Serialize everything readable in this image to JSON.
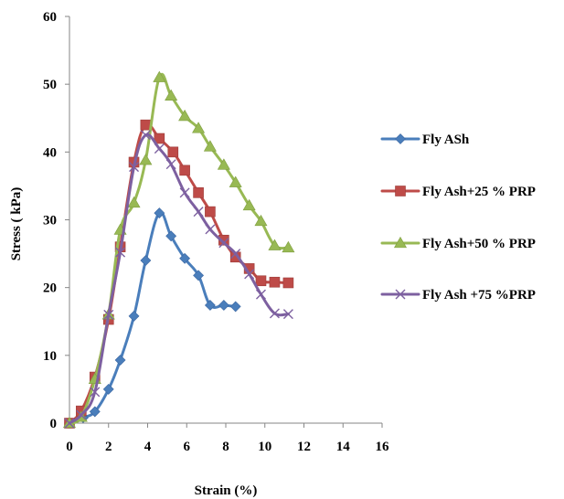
{
  "chart_data": {
    "type": "line",
    "title": "",
    "xlabel": "Strain  (%)",
    "ylabel": "Stress ( kPa)",
    "xlim": [
      0,
      16
    ],
    "ylim": [
      0,
      60
    ],
    "x_ticks": [
      0,
      2,
      4,
      6,
      8,
      10,
      12,
      14,
      16
    ],
    "y_ticks": [
      0,
      10,
      20,
      30,
      40,
      50,
      60
    ],
    "grid": false,
    "legend": "right",
    "series": [
      {
        "name": "Fly ASh",
        "color": "#4A7EBB",
        "marker": "diamond",
        "points": [
          [
            0,
            0
          ],
          [
            0.7,
            0.8
          ],
          [
            1.3,
            1.7
          ],
          [
            2,
            5
          ],
          [
            2.6,
            9.3
          ],
          [
            3.3,
            15.8
          ],
          [
            3.9,
            24
          ],
          [
            4.6,
            31
          ],
          [
            5.2,
            27.6
          ],
          [
            5.9,
            24.3
          ],
          [
            6.6,
            21.8
          ],
          [
            7.2,
            17.4
          ],
          [
            7.9,
            17.4
          ],
          [
            8.5,
            17.2
          ]
        ]
      },
      {
        "name": "Fly Ash+25 % PRP",
        "color": "#BE4B48",
        "marker": "square",
        "points": [
          [
            0,
            0
          ],
          [
            0.6,
            1.8
          ],
          [
            1.3,
            6.8
          ],
          [
            2,
            15.3
          ],
          [
            2.6,
            26
          ],
          [
            3.3,
            38.5
          ],
          [
            3.9,
            44
          ],
          [
            4.6,
            42
          ],
          [
            5.3,
            40
          ],
          [
            5.9,
            37.3
          ],
          [
            6.6,
            34
          ],
          [
            7.2,
            31.2
          ],
          [
            7.9,
            27
          ],
          [
            8.5,
            24.5
          ],
          [
            9.2,
            22.8
          ],
          [
            9.8,
            21
          ],
          [
            10.5,
            20.8
          ],
          [
            11.2,
            20.7
          ]
        ]
      },
      {
        "name": "Fly Ash+50 % PRP",
        "color": "#98B954",
        "marker": "triangle",
        "points": [
          [
            0,
            0
          ],
          [
            0.6,
            0.9
          ],
          [
            1.3,
            6.5
          ],
          [
            2,
            16
          ],
          [
            2.6,
            28.5
          ],
          [
            3.3,
            32.5
          ],
          [
            3.9,
            38.8
          ],
          [
            4.6,
            51
          ],
          [
            5.2,
            48.3
          ],
          [
            5.9,
            45.3
          ],
          [
            6.6,
            43.5
          ],
          [
            7.2,
            40.8
          ],
          [
            7.9,
            38.1
          ],
          [
            8.5,
            35.5
          ],
          [
            9.2,
            32.1
          ],
          [
            9.8,
            29.8
          ],
          [
            10.5,
            26.2
          ],
          [
            11.2,
            25.9
          ]
        ]
      },
      {
        "name": "Fly Ash +75 %PRP",
        "color": "#7D60A0",
        "marker": "x",
        "points": [
          [
            0,
            0
          ],
          [
            0.6,
            1.2
          ],
          [
            1.3,
            4.6
          ],
          [
            2,
            16
          ],
          [
            2.6,
            25.2
          ],
          [
            3.3,
            37.8
          ],
          [
            3.9,
            42.5
          ],
          [
            4.6,
            40.5
          ],
          [
            5.2,
            38.2
          ],
          [
            5.9,
            34
          ],
          [
            6.6,
            31.2
          ],
          [
            7.2,
            28.6
          ],
          [
            7.9,
            26.6
          ],
          [
            8.5,
            25
          ],
          [
            9.2,
            22
          ],
          [
            9.8,
            19
          ],
          [
            10.5,
            16.2
          ],
          [
            11.2,
            16.1
          ]
        ]
      }
    ]
  }
}
